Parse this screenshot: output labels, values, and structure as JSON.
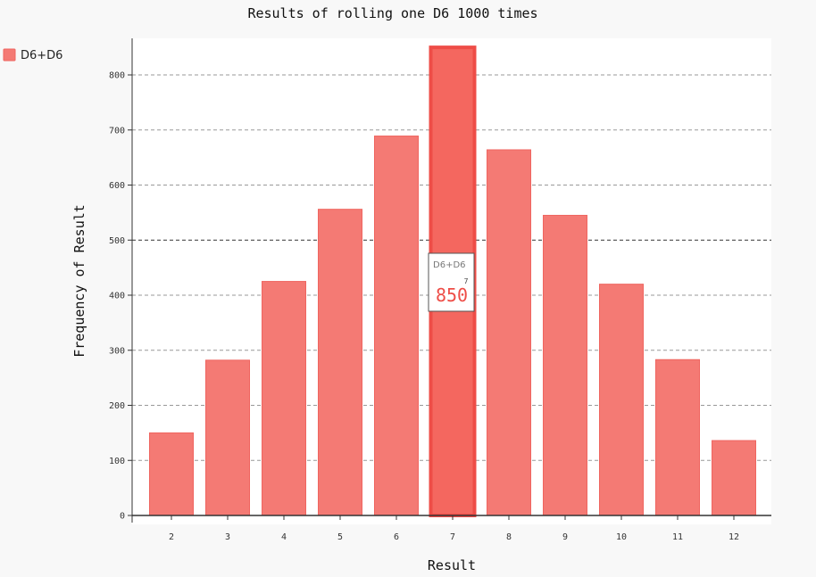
{
  "chart_data": {
    "type": "bar",
    "title": "Results of rolling one D6 1000 times",
    "xlabel": "Result",
    "ylabel": "Frequency of Result",
    "categories": [
      "2",
      "3",
      "4",
      "5",
      "6",
      "7",
      "8",
      "9",
      "10",
      "11",
      "12"
    ],
    "series": [
      {
        "name": "D6+D6",
        "values": [
          150,
          282,
          425,
          556,
          689,
          850,
          664,
          545,
          420,
          283,
          136
        ]
      }
    ],
    "ylim": [
      0,
      860
    ],
    "yticks": [
      0,
      100,
      200,
      300,
      400,
      500,
      600,
      700,
      800
    ],
    "grid": true,
    "legend": "top-left",
    "highlighted": {
      "category": "7",
      "series": "D6+D6",
      "value": 850
    },
    "colors": {
      "bar": "#f47a74",
      "bar_stroke": "#ef6560",
      "bar_highlight": "#f4675f",
      "bar_highlight_stroke": "#ee4d47",
      "plot_background": "#ffffff",
      "page_background": "#f8f8f8",
      "axis": "#333333",
      "grid": "#999999",
      "text": "#111111"
    }
  }
}
